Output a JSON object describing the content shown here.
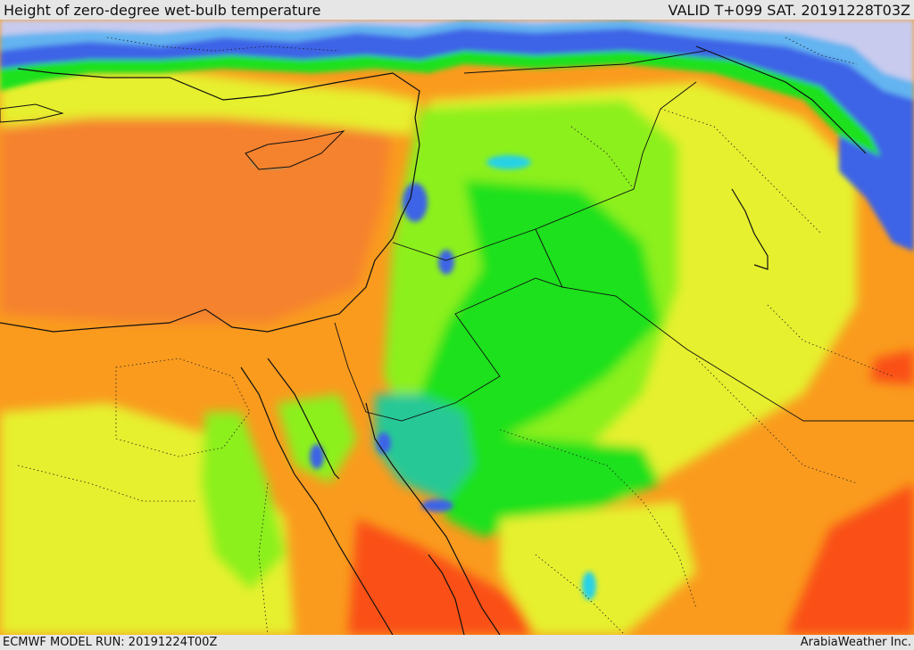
{
  "header": {
    "title": "Height of zero-degree wet-bulb temperature",
    "valid_time": "VALID T+099 SAT. 20191228T03Z"
  },
  "footer": {
    "model_run": "ECMWF MODEL RUN: 20191224T00Z",
    "credit": "ArabiaWeather Inc."
  },
  "map": {
    "colors": {
      "sea_lavender": "#c8cbee",
      "blue": "#3c64e6",
      "light_blue": "#64b4f0",
      "cyan": "#28d2e6",
      "teal": "#28c896",
      "green": "#1ee11e",
      "lime": "#8cf01e",
      "yellow": "#e6f02d",
      "orange": "#fa9b1e",
      "dark_orange": "#f5822d",
      "red_orange": "#fa5014",
      "border_line": "#111111"
    }
  }
}
